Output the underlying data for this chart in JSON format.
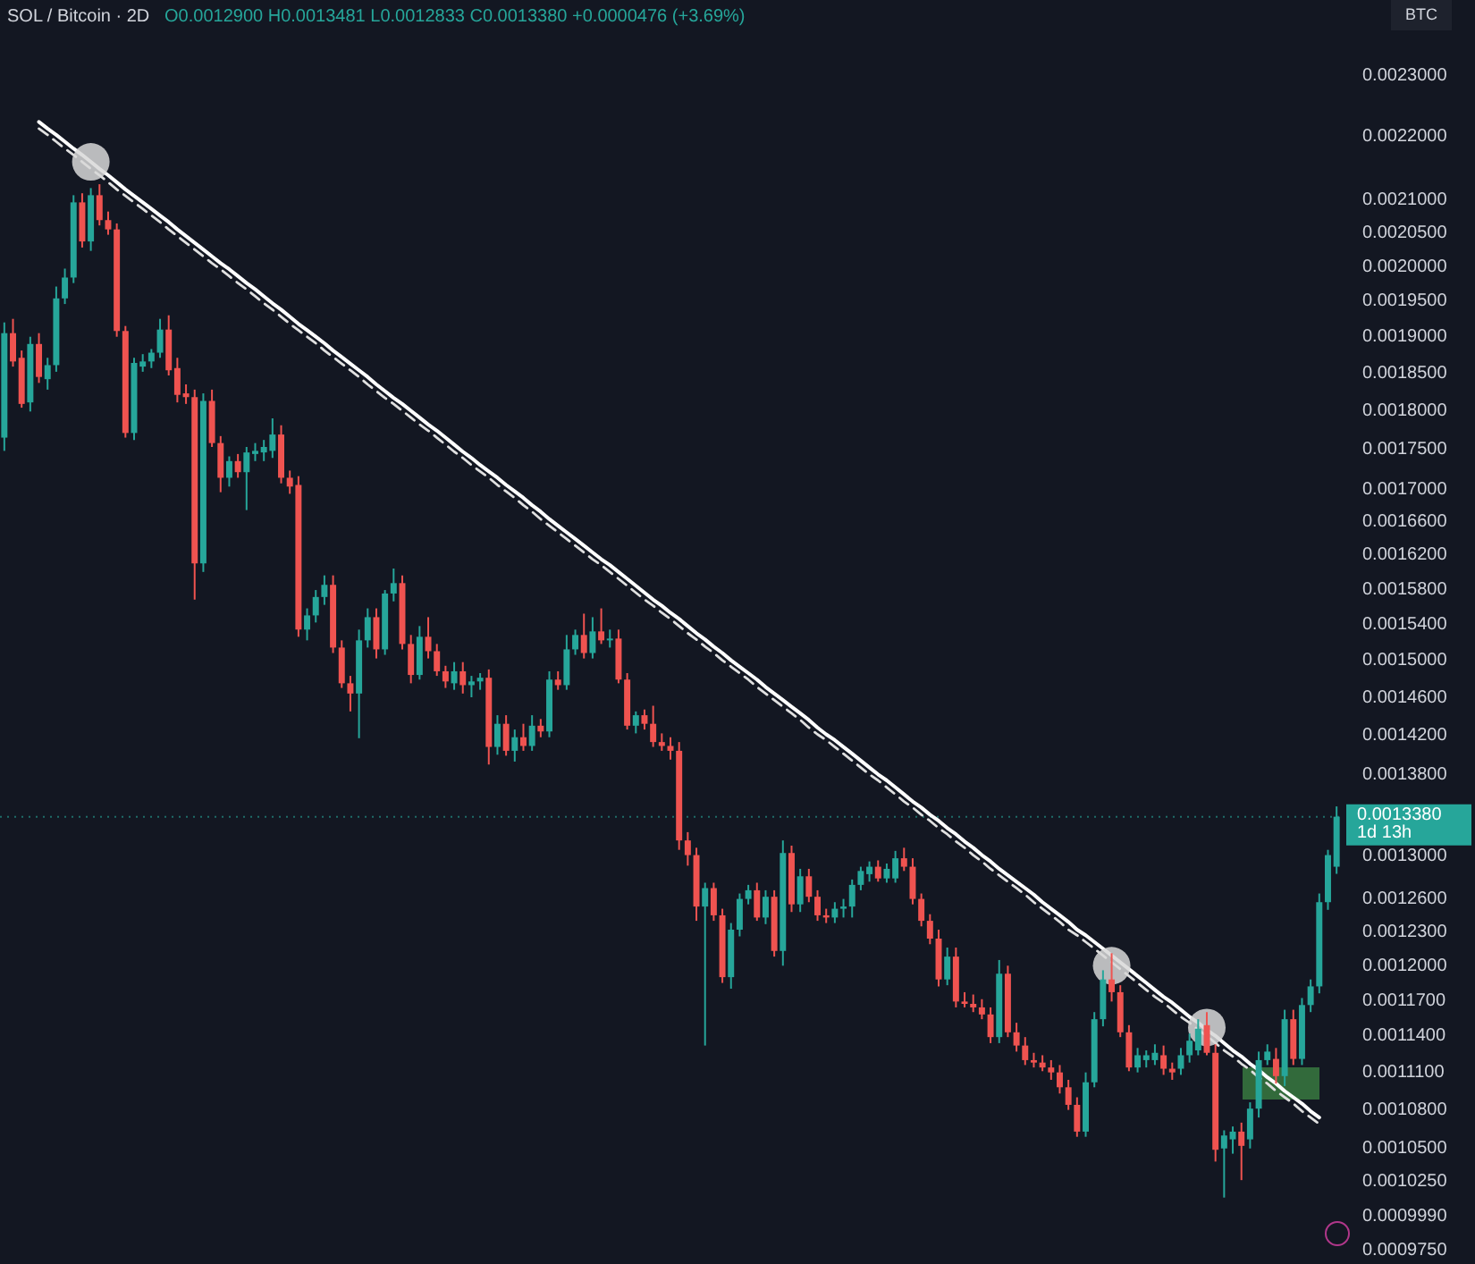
{
  "chart_data": {
    "type": "candlestick",
    "title": "SOL / Bitcoin · 2D",
    "subtitle": "O0.0012900 H0.0013481 L0.0012833 C0.0013380 +0.0000476 (+3.69%)",
    "ylabel": "BTC",
    "categories": [
      null,
      null,
      null,
      null,
      null,
      null,
      null,
      null,
      null,
      null,
      null,
      null,
      null,
      null,
      null,
      null,
      null,
      null,
      null,
      null,
      null,
      null,
      null,
      null,
      null,
      null,
      null,
      null,
      null,
      null,
      null,
      null,
      null,
      null,
      null,
      null,
      null,
      null,
      null,
      null,
      null,
      null,
      null,
      null,
      null,
      null,
      null,
      null,
      null,
      null,
      null,
      null,
      null,
      null,
      null,
      null,
      null,
      null,
      null,
      null,
      null,
      null,
      null,
      null,
      null,
      null,
      null,
      null,
      null,
      null,
      null,
      null,
      null,
      null,
      null,
      null,
      null,
      null,
      null,
      null,
      null,
      null,
      null,
      null,
      null,
      null,
      null,
      null,
      null,
      null,
      null,
      null,
      null,
      null,
      null,
      null,
      null,
      null,
      null,
      null,
      null,
      null,
      null,
      null,
      null,
      null,
      null,
      null,
      null,
      null,
      null,
      null,
      null,
      null,
      null,
      null,
      null,
      null,
      null,
      null,
      null,
      null,
      null,
      null,
      null,
      null,
      null,
      null,
      null,
      null,
      null,
      null,
      null,
      null,
      null,
      null,
      null,
      null,
      null,
      null,
      null,
      null,
      null,
      null,
      null,
      null,
      null,
      null,
      null,
      null,
      null,
      null,
      null,
      null,
      null
    ],
    "ohlc": [
      [
        0.001765,
        0.00192,
        0.001748,
        0.001905
      ],
      [
        0.001905,
        0.001925,
        0.001859,
        0.001866
      ],
      [
        0.001871,
        0.001881,
        0.001804,
        0.001809
      ],
      [
        0.001811,
        0.0019,
        0.001799,
        0.00189
      ],
      [
        0.00189,
        0.001905,
        0.001837,
        0.001845
      ],
      [
        0.001842,
        0.001871,
        0.001828,
        0.001861
      ],
      [
        0.001861,
        0.001971,
        0.001852,
        0.001954
      ],
      [
        0.001954,
        0.001997,
        0.001946,
        0.001984
      ],
      [
        0.001984,
        0.002107,
        0.001976,
        0.002096
      ],
      [
        0.002096,
        0.00211,
        0.002028,
        0.002037
      ],
      [
        0.002037,
        0.002118,
        0.002023,
        0.002107
      ],
      [
        0.002107,
        0.002124,
        0.002061,
        0.002069
      ],
      [
        0.002069,
        0.002082,
        0.002047,
        0.002055
      ],
      [
        0.002055,
        0.002064,
        0.0019,
        0.001908
      ],
      [
        0.001908,
        0.001915,
        0.001765,
        0.001771
      ],
      [
        0.001771,
        0.001871,
        0.001762,
        0.001864
      ],
      [
        0.001859,
        0.001876,
        0.001852,
        0.001866
      ],
      [
        0.001866,
        0.001883,
        0.001857,
        0.001878
      ],
      [
        0.001878,
        0.001925,
        0.001871,
        0.00191
      ],
      [
        0.00191,
        0.00193,
        0.001847,
        0.001854
      ],
      [
        0.001857,
        0.001871,
        0.001811,
        0.001821
      ],
      [
        0.001823,
        0.001835,
        0.001809,
        0.001818
      ],
      [
        0.001818,
        0.001828,
        0.001568,
        0.00161
      ],
      [
        0.00161,
        0.001823,
        0.0016,
        0.001813
      ],
      [
        0.001813,
        0.001828,
        0.001753,
        0.001758
      ],
      [
        0.001758,
        0.001767,
        0.001696,
        0.001714
      ],
      [
        0.001714,
        0.001741,
        0.001703,
        0.001735
      ],
      [
        0.001735,
        0.001744,
        0.001714,
        0.001721
      ],
      [
        0.001721,
        0.001753,
        0.001674,
        0.001746
      ],
      [
        0.001744,
        0.001758,
        0.001735,
        0.001748
      ],
      [
        0.001746,
        0.001762,
        0.001735,
        0.001753
      ],
      [
        0.001748,
        0.00179,
        0.001739,
        0.001769
      ],
      [
        0.001769,
        0.001781,
        0.001707,
        0.001714
      ],
      [
        0.001714,
        0.001723,
        0.001694,
        0.001703
      ],
      [
        0.001705,
        0.001716,
        0.001526,
        0.001534
      ],
      [
        0.001534,
        0.001558,
        0.001522,
        0.00155
      ],
      [
        0.00155,
        0.001579,
        0.001542,
        0.001571
      ],
      [
        0.001571,
        0.001596,
        0.001562,
        0.001585
      ],
      [
        0.001585,
        0.001596,
        0.001508,
        0.001514
      ],
      [
        0.001514,
        0.001522,
        0.00147,
        0.001475
      ],
      [
        0.001475,
        0.001483,
        0.001445,
        0.001464
      ],
      [
        0.001464,
        0.001534,
        0.001417,
        0.001522
      ],
      [
        0.001522,
        0.001558,
        0.001514,
        0.001548
      ],
      [
        0.001548,
        0.001558,
        0.001502,
        0.001512
      ],
      [
        0.001512,
        0.001579,
        0.001506,
        0.001575
      ],
      [
        0.001575,
        0.001604,
        0.001566,
        0.001587
      ],
      [
        0.001587,
        0.001596,
        0.001512,
        0.001518
      ],
      [
        0.001518,
        0.001528,
        0.001475,
        0.001484
      ],
      [
        0.001484,
        0.001538,
        0.001479,
        0.001526
      ],
      [
        0.001526,
        0.001548,
        0.001502,
        0.00151
      ],
      [
        0.00151,
        0.001518,
        0.001483,
        0.001488
      ],
      [
        0.001488,
        0.001494,
        0.00147,
        0.001477
      ],
      [
        0.001475,
        0.001498,
        0.001468,
        0.001488
      ],
      [
        0.001488,
        0.001498,
        0.001464,
        0.001473
      ],
      [
        0.001473,
        0.001483,
        0.00146,
        0.001477
      ],
      [
        0.001477,
        0.001486,
        0.001468,
        0.001481
      ],
      [
        0.001481,
        0.00149,
        0.00139,
        0.001408
      ],
      [
        0.001408,
        0.001441,
        0.0014,
        0.001432
      ],
      [
        0.001432,
        0.001441,
        0.001399,
        0.001404
      ],
      [
        0.001404,
        0.001426,
        0.001393,
        0.001418
      ],
      [
        0.001418,
        0.001432,
        0.001404,
        0.001409
      ],
      [
        0.001409,
        0.001441,
        0.001404,
        0.00143
      ],
      [
        0.00143,
        0.001437,
        0.001418,
        0.001424
      ],
      [
        0.001424,
        0.001488,
        0.001418,
        0.001479
      ],
      [
        0.001479,
        0.001488,
        0.001468,
        0.001473
      ],
      [
        0.001473,
        0.001528,
        0.001468,
        0.001512
      ],
      [
        0.001512,
        0.001534,
        0.001506,
        0.001528
      ],
      [
        0.001528,
        0.001552,
        0.001502,
        0.001508
      ],
      [
        0.001508,
        0.001548,
        0.001502,
        0.001532
      ],
      [
        0.001532,
        0.001558,
        0.001518,
        0.001522
      ],
      [
        0.001522,
        0.001534,
        0.001514,
        0.001524
      ],
      [
        0.001524,
        0.001534,
        0.001475,
        0.001479
      ],
      [
        0.001479,
        0.001486,
        0.001426,
        0.00143
      ],
      [
        0.00143,
        0.001445,
        0.001422,
        0.001441
      ],
      [
        0.001441,
        0.001447,
        0.001426,
        0.001432
      ],
      [
        0.001432,
        0.001451,
        0.001408,
        0.001413
      ],
      [
        0.001413,
        0.001422,
        0.001404,
        0.001409
      ],
      [
        0.001409,
        0.001418,
        0.001395,
        0.001404
      ],
      [
        0.001404,
        0.001413,
        0.001306,
        0.001315
      ],
      [
        0.001315,
        0.001323,
        0.001291,
        0.001301
      ],
      [
        0.001301,
        0.001308,
        0.00124,
        0.001253
      ],
      [
        0.001253,
        0.001275,
        0.001132,
        0.00127
      ],
      [
        0.00127,
        0.001275,
        0.00124,
        0.001245
      ],
      [
        0.001245,
        0.001251,
        0.001185,
        0.00119
      ],
      [
        0.00119,
        0.001238,
        0.00118,
        0.001232
      ],
      [
        0.001232,
        0.001265,
        0.001226,
        0.00126
      ],
      [
        0.00126,
        0.001273,
        0.001255,
        0.001268
      ],
      [
        0.001268,
        0.001275,
        0.00124,
        0.001243
      ],
      [
        0.001243,
        0.001268,
        0.001237,
        0.001262
      ],
      [
        0.001262,
        0.001268,
        0.001208,
        0.001213
      ],
      [
        0.001213,
        0.001315,
        0.0012,
        0.001303
      ],
      [
        0.001303,
        0.00131,
        0.001248,
        0.001255
      ],
      [
        0.001255,
        0.001288,
        0.001248,
        0.001281
      ],
      [
        0.001281,
        0.001288,
        0.001257,
        0.001262
      ],
      [
        0.001262,
        0.001268,
        0.00124,
        0.001245
      ],
      [
        0.001245,
        0.001251,
        0.001238,
        0.001243
      ],
      [
        0.001243,
        0.001257,
        0.001238,
        0.001251
      ],
      [
        0.001251,
        0.00126,
        0.001243,
        0.001253
      ],
      [
        0.001253,
        0.001278,
        0.001243,
        0.001273
      ],
      [
        0.001273,
        0.00129,
        0.001268,
        0.001286
      ],
      [
        0.001283,
        0.001295,
        0.001276,
        0.00129
      ],
      [
        0.00129,
        0.001296,
        0.001276,
        0.001279
      ],
      [
        0.001279,
        0.001293,
        0.001275,
        0.001288
      ],
      [
        0.001279,
        0.001305,
        0.001275,
        0.001298
      ],
      [
        0.001298,
        0.001308,
        0.001286,
        0.00129
      ],
      [
        0.00129,
        0.001298,
        0.001255,
        0.00126
      ],
      [
        0.00126,
        0.001265,
        0.001235,
        0.00124
      ],
      [
        0.00124,
        0.001246,
        0.001219,
        0.001224
      ],
      [
        0.001224,
        0.001232,
        0.001182,
        0.001188
      ],
      [
        0.001188,
        0.001216,
        0.001183,
        0.001208
      ],
      [
        0.001208,
        0.001216,
        0.001164,
        0.001169
      ],
      [
        0.001169,
        0.001177,
        0.001164,
        0.001167
      ],
      [
        0.001167,
        0.001175,
        0.00116,
        0.001164
      ],
      [
        0.001164,
        0.001171,
        0.001154,
        0.001158
      ],
      [
        0.001158,
        0.001164,
        0.001134,
        0.001139
      ],
      [
        0.001139,
        0.001205,
        0.001134,
        0.001193
      ],
      [
        0.001193,
        0.0012,
        0.001139,
        0.001143
      ],
      [
        0.001143,
        0.001151,
        0.001127,
        0.001132
      ],
      [
        0.001132,
        0.001139,
        0.001116,
        0.00112
      ],
      [
        0.00112,
        0.001126,
        0.001114,
        0.001118
      ],
      [
        0.001118,
        0.001124,
        0.001111,
        0.001114
      ],
      [
        0.001114,
        0.00112,
        0.001104,
        0.00111
      ],
      [
        0.00111,
        0.001116,
        0.001093,
        0.001098
      ],
      [
        0.001098,
        0.001104,
        0.00108,
        0.001084
      ],
      [
        0.001084,
        0.00109,
        0.001059,
        0.001063
      ],
      [
        0.001063,
        0.00111,
        0.001059,
        0.001102
      ],
      [
        0.001102,
        0.00116,
        0.001098,
        0.001154
      ],
      [
        0.001154,
        0.001196,
        0.001148,
        0.001188
      ],
      [
        0.001188,
        0.001211,
        0.001169,
        0.001177
      ],
      [
        0.001177,
        0.001183,
        0.001139,
        0.001143
      ],
      [
        0.001143,
        0.001149,
        0.001111,
        0.001114
      ],
      [
        0.001114,
        0.00113,
        0.00111,
        0.001124
      ],
      [
        0.00112,
        0.001128,
        0.001114,
        0.001124
      ],
      [
        0.00112,
        0.001133,
        0.001116,
        0.001126
      ],
      [
        0.001124,
        0.001132,
        0.001108,
        0.001113
      ],
      [
        0.001113,
        0.001118,
        0.001104,
        0.00111
      ],
      [
        0.001113,
        0.00113,
        0.001108,
        0.001124
      ],
      [
        0.001124,
        0.001142,
        0.001118,
        0.001136
      ],
      [
        0.001128,
        0.001154,
        0.001124,
        0.001146
      ],
      [
        0.001149,
        0.00116,
        0.001124,
        0.001126
      ],
      [
        0.001126,
        0.001133,
        0.00104,
        0.001049
      ],
      [
        0.00105,
        0.001064,
        0.001013,
        0.00106
      ],
      [
        0.001057,
        0.001067,
        0.001046,
        0.001063
      ],
      [
        0.001063,
        0.00107,
        0.001026,
        0.001052
      ],
      [
        0.001057,
        0.001086,
        0.00105,
        0.001081
      ],
      [
        0.001081,
        0.001127,
        0.001074,
        0.00112
      ],
      [
        0.00112,
        0.001133,
        0.001116,
        0.001127
      ],
      [
        0.001121,
        0.00113,
        0.001101,
        0.001107
      ],
      [
        0.001107,
        0.001162,
        0.001099,
        0.001154
      ],
      [
        0.001154,
        0.001162,
        0.001116,
        0.001121
      ],
      [
        0.001121,
        0.001172,
        0.001116,
        0.001166
      ],
      [
        0.001166,
        0.001188,
        0.00116,
        0.001182
      ],
      [
        0.001182,
        0.001265,
        0.001176,
        0.001257
      ],
      [
        0.001257,
        0.001306,
        0.00125,
        0.001301
      ],
      [
        0.00129,
        0.0013481,
        0.0012833,
        0.001338
      ]
    ],
    "colors": [
      "#26a69a",
      "#ef5350",
      "#ef5350",
      "#26a69a",
      "#ef5350",
      "#26a69a",
      "#26a69a",
      "#26a69a",
      "#26a69a",
      "#ef5350",
      "#26a69a",
      "#ef5350",
      "#ef5350",
      "#ef5350",
      "#ef5350",
      "#26a69a",
      "#26a69a",
      "#26a69a",
      "#26a69a",
      "#ef5350",
      "#ef5350",
      "#ef5350",
      "#ef5350",
      "#26a69a",
      "#ef5350",
      "#ef5350",
      "#26a69a",
      "#ef5350",
      "#26a69a",
      "#26a69a",
      "#26a69a",
      "#26a69a",
      "#ef5350",
      "#ef5350",
      "#ef5350",
      "#26a69a",
      "#26a69a",
      "#26a69a",
      "#ef5350",
      "#ef5350",
      "#ef5350",
      "#26a69a",
      "#26a69a",
      "#ef5350",
      "#26a69a",
      "#26a69a",
      "#ef5350",
      "#ef5350",
      "#26a69a",
      "#ef5350",
      "#ef5350",
      "#ef5350",
      "#26a69a",
      "#ef5350",
      "#26a69a",
      "#26a69a",
      "#ef5350",
      "#26a69a",
      "#ef5350",
      "#26a69a",
      "#ef5350",
      "#26a69a",
      "#ef5350",
      "#26a69a",
      "#ef5350",
      "#26a69a",
      "#26a69a",
      "#ef5350",
      "#26a69a",
      "#ef5350",
      "#26a69a",
      "#ef5350",
      "#ef5350",
      "#26a69a",
      "#ef5350",
      "#ef5350",
      "#ef5350",
      "#ef5350",
      "#ef5350",
      "#ef5350",
      "#ef5350",
      "#26a69a",
      "#ef5350",
      "#ef5350",
      "#26a69a",
      "#26a69a",
      "#26a69a",
      "#ef5350",
      "#26a69a",
      "#ef5350",
      "#26a69a",
      "#ef5350",
      "#26a69a",
      "#ef5350",
      "#ef5350",
      "#ef5350",
      "#26a69a",
      "#26a69a",
      "#26a69a",
      "#26a69a",
      "#26a69a",
      "#ef5350",
      "#26a69a",
      "#26a69a",
      "#ef5350",
      "#ef5350",
      "#ef5350",
      "#ef5350",
      "#ef5350",
      "#26a69a",
      "#ef5350",
      "#ef5350",
      "#ef5350",
      "#ef5350",
      "#ef5350",
      "#26a69a",
      "#ef5350",
      "#ef5350",
      "#ef5350",
      "#ef5350",
      "#ef5350",
      "#ef5350",
      "#ef5350",
      "#ef5350",
      "#ef5350",
      "#26a69a",
      "#26a69a",
      "#26a69a",
      "#ef5350",
      "#ef5350",
      "#ef5350",
      "#26a69a",
      "#26a69a",
      "#26a69a",
      "#ef5350",
      "#ef5350",
      "#26a69a",
      "#26a69a",
      "#26a69a",
      "#ef5350",
      "#ef5350",
      "#26a69a",
      "#26a69a",
      "#ef5350",
      "#26a69a",
      "#26a69a",
      "#26a69a",
      "#ef5350",
      "#26a69a",
      "#ef5350",
      "#26a69a",
      "#26a69a",
      "#26a69a",
      "#26a69a",
      "#26a69a"
    ],
    "series": [
      {
        "type": "line",
        "color": "#ffffff",
        "values": [
          null,
          null,
          null,
          null,
          0.002223,
          0.002212,
          0.002202,
          0.002191,
          0.00218,
          0.00217,
          0.002159,
          0.002148,
          0.002138,
          0.002127,
          0.002116,
          0.002106,
          0.002096,
          0.002086,
          0.002076,
          0.002066,
          0.002055,
          0.002045,
          0.002035,
          0.002025,
          0.002015,
          0.002005,
          0.001996,
          0.001986,
          0.001976,
          0.001967,
          0.001957,
          0.001947,
          0.001938,
          0.001928,
          0.001918,
          0.001909,
          0.0019,
          0.001891,
          0.001881,
          0.001872,
          0.001863,
          0.001854,
          0.001845,
          0.001835,
          0.001826,
          0.001817,
          0.001809,
          0.0018,
          0.001791,
          0.001782,
          0.001774,
          0.001765,
          0.001756,
          0.001747,
          0.001739,
          0.00173,
          0.001722,
          0.001714,
          0.001705,
          0.001697,
          0.001689,
          0.00168,
          0.001672,
          0.001663,
          0.001655,
          0.001647,
          0.001639,
          0.001631,
          0.001623,
          0.001615,
          0.001608,
          0.0016,
          0.001592,
          0.001584,
          0.001576,
          0.001568,
          0.001561,
          0.001553,
          0.001546,
          0.001538,
          0.00153,
          0.001523,
          0.001515,
          0.001508,
          0.0015,
          0.001493,
          0.001486,
          0.001479,
          0.001471,
          0.001464,
          0.001457,
          0.00145,
          0.001443,
          0.001436,
          0.001428,
          0.001421,
          0.001415,
          0.001408,
          0.001401,
          0.001394,
          0.001387,
          0.00138,
          0.001374,
          0.001367,
          0.00136,
          0.001353,
          0.001347,
          0.00134,
          0.001334,
          0.001327,
          0.001321,
          0.001314,
          0.001308,
          0.001301,
          0.001295,
          0.001288,
          0.001282,
          0.001276,
          0.00127,
          0.001264,
          0.001257,
          0.001251,
          0.001245,
          0.001239,
          0.001232,
          0.001227,
          0.001221,
          0.001215,
          0.001209,
          0.001203,
          0.001197,
          0.001191,
          0.001185,
          0.001179,
          0.001173,
          0.001168,
          0.001162,
          0.001156,
          0.001151,
          0.001145,
          0.00114,
          0.001134,
          0.001128,
          0.001123,
          0.001117,
          0.001112,
          0.001106,
          0.001101,
          0.001095,
          0.00109,
          0.001085,
          0.001079,
          0.001074,
          null,
          null
        ]
      },
      {
        "type": "line",
        "color": "#e0e0e0",
        "line_style": "dashed",
        "values": [
          null,
          null,
          null,
          null,
          0.002212,
          0.002202,
          0.002191,
          0.00218,
          0.00217,
          0.002159,
          0.002148,
          0.002138,
          0.002127,
          0.002116,
          0.002106,
          0.002096,
          0.002086,
          0.002076,
          0.002066,
          0.002055,
          0.002045,
          0.002035,
          0.002025,
          0.002015,
          0.002005,
          0.001996,
          0.001986,
          0.001976,
          0.001967,
          0.001957,
          0.001947,
          0.001938,
          0.001928,
          0.001918,
          0.001909,
          0.0019,
          0.001891,
          0.001881,
          0.001872,
          0.001863,
          0.001854,
          0.001845,
          0.001835,
          0.001826,
          0.001817,
          0.001809,
          0.0018,
          0.001791,
          0.001782,
          0.001774,
          0.001765,
          0.001756,
          0.001747,
          0.001739,
          0.00173,
          0.001722,
          0.001714,
          0.001705,
          0.001697,
          0.001689,
          0.00168,
          0.001672,
          0.001663,
          0.001655,
          0.001647,
          0.001639,
          0.001631,
          0.001623,
          0.001615,
          0.001608,
          0.0016,
          0.001592,
          0.001584,
          0.001576,
          0.001568,
          0.001561,
          0.001553,
          0.001546,
          0.001538,
          0.00153,
          0.001523,
          0.001515,
          0.001508,
          0.0015,
          0.001493,
          0.001486,
          0.001479,
          0.001471,
          0.001464,
          0.001457,
          0.00145,
          0.001443,
          0.001436,
          0.001428,
          0.001421,
          0.001415,
          0.001408,
          0.001401,
          0.001394,
          0.001387,
          0.00138,
          0.001374,
          0.001367,
          0.00136,
          0.001353,
          0.001347,
          0.00134,
          0.001334,
          0.001327,
          0.001321,
          0.001314,
          0.001308,
          0.001301,
          0.001295,
          0.001288,
          0.001282,
          0.001276,
          0.00127,
          0.001264,
          0.001257,
          0.001251,
          0.001245,
          0.001239,
          0.001232,
          0.001227,
          0.001221,
          0.001215,
          0.001209,
          0.001203,
          0.001197,
          0.001191,
          0.001185,
          0.001179,
          0.001173,
          0.001168,
          0.001162,
          0.001156,
          0.001151,
          0.001145,
          0.00114,
          0.001134,
          0.001128,
          0.001123,
          0.001117,
          0.001112,
          0.001106,
          0.001101,
          0.001095,
          0.00109,
          0.001085,
          0.001079,
          0.001074,
          0.001069,
          null,
          null
        ]
      },
      {
        "type": "scatter",
        "color": "#d8d8d8",
        "marker": "circle",
        "values": [
          null,
          null,
          null,
          null,
          null,
          null,
          null,
          null,
          null,
          null,
          0.002159,
          null,
          null,
          null,
          null,
          null,
          null,
          null,
          null,
          null,
          null,
          null,
          null,
          null,
          null,
          null,
          null,
          null,
          null,
          null,
          null,
          null,
          null,
          null,
          null,
          null,
          null,
          null,
          null,
          null,
          null,
          null,
          null,
          null,
          null,
          null,
          null,
          null,
          null,
          null,
          null,
          null,
          null,
          null,
          null,
          null,
          null,
          null,
          null,
          null,
          null,
          null,
          null,
          null,
          null,
          null,
          null,
          null,
          null,
          null,
          null,
          null,
          null,
          null,
          null,
          null,
          null,
          null,
          null,
          null,
          null,
          null,
          null,
          null,
          null,
          null,
          null,
          null,
          null,
          null,
          null,
          null,
          null,
          null,
          null,
          null,
          null,
          null,
          null,
          null,
          null,
          null,
          null,
          null,
          null,
          null,
          null,
          null,
          null,
          null,
          null,
          null,
          null,
          null,
          null,
          null,
          null,
          null,
          null,
          null,
          null,
          null,
          null,
          null,
          null,
          null,
          null,
          null,
          0.0012,
          null,
          null,
          null,
          null,
          null,
          null,
          null,
          null,
          null,
          null,
          0.001147,
          null,
          null,
          null,
          null,
          null,
          null,
          null,
          null,
          null,
          null,
          null,
          null,
          null,
          null,
          null
        ]
      }
    ],
    "ylim": [
      0.000965,
      0.00243
    ],
    "yticks": [
      {
        "value": 0.0023,
        "label": "0.0023000"
      },
      {
        "value": 0.0022,
        "label": "0.0022000"
      },
      {
        "value": 0.0021,
        "label": "0.0021000"
      },
      {
        "value": 0.00205,
        "label": "0.0020500"
      },
      {
        "value": 0.002,
        "label": "0.0020000"
      },
      {
        "value": 0.00195,
        "label": "0.0019500"
      },
      {
        "value": 0.0019,
        "label": "0.0019000"
      },
      {
        "value": 0.00185,
        "label": "0.0018500"
      },
      {
        "value": 0.0018,
        "label": "0.0018000"
      },
      {
        "value": 0.00175,
        "label": "0.0017500"
      },
      {
        "value": 0.0017,
        "label": "0.0017000"
      },
      {
        "value": 0.00166,
        "label": "0.0016600"
      },
      {
        "value": 0.00162,
        "label": "0.0016200"
      },
      {
        "value": 0.00158,
        "label": "0.0015800"
      },
      {
        "value": 0.00154,
        "label": "0.0015400"
      },
      {
        "value": 0.0015,
        "label": "0.0015000"
      },
      {
        "value": 0.00146,
        "label": "0.0014600"
      },
      {
        "value": 0.00142,
        "label": "0.0014200"
      },
      {
        "value": 0.00138,
        "label": "0.0013800"
      },
      {
        "value": 0.0013,
        "label": "0.0013000"
      },
      {
        "value": 0.00126,
        "label": "0.0012600"
      },
      {
        "value": 0.00123,
        "label": "0.0012300"
      },
      {
        "value": 0.0012,
        "label": "0.0012000"
      },
      {
        "value": 0.00117,
        "label": "0.0011700"
      },
      {
        "value": 0.00114,
        "label": "0.0011400"
      },
      {
        "value": 0.00111,
        "label": "0.0011100"
      },
      {
        "value": 0.00108,
        "label": "0.0010800"
      },
      {
        "value": 0.00105,
        "label": "0.0010500"
      },
      {
        "value": 0.001025,
        "label": "0.0010250"
      },
      {
        "value": 0.000999,
        "label": "0.0009990"
      },
      {
        "value": 0.000975,
        "label": "0.0009750"
      }
    ],
    "log": true,
    "grid": false,
    "tick_labels": "y",
    "ref_lines": [
      {
        "axis": "y",
        "value": 0.001338,
        "label": "0.0013380\n1d 13h",
        "color": "#26a69a",
        "line_style": "dotted"
      }
    ]
  }
}
